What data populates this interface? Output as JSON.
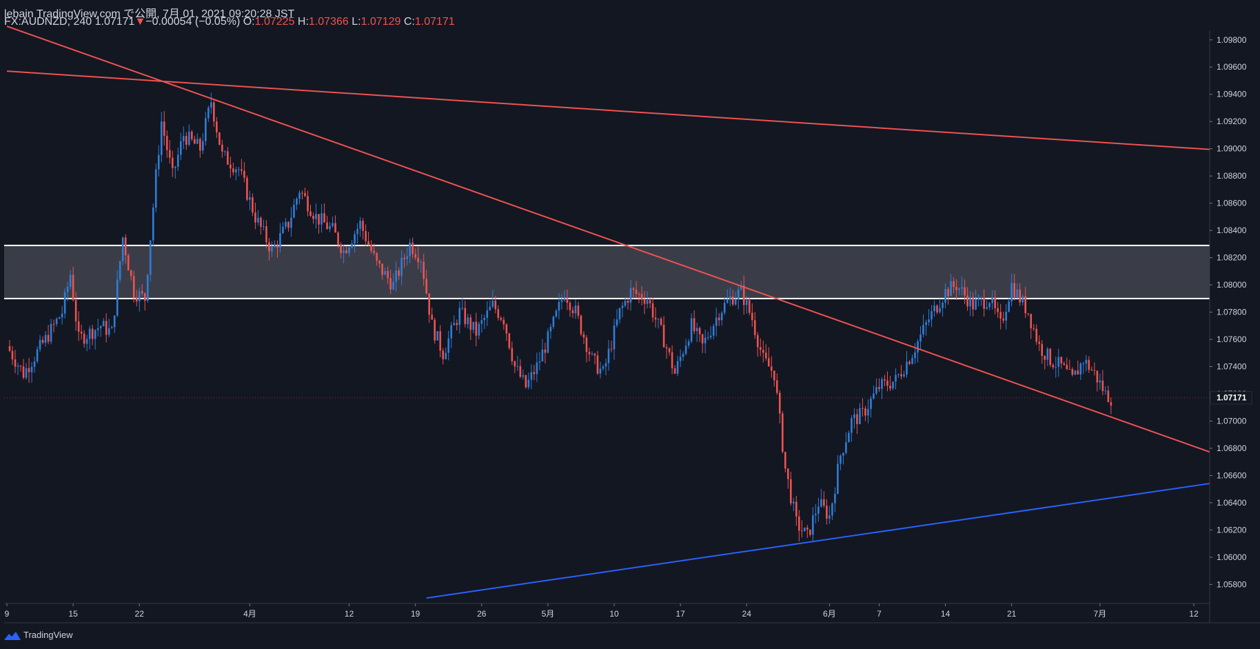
{
  "header": {
    "publisher": "lebain TradingView.com で公開, 7月 01, 2021 09:20:28 JST",
    "symbol": "FX:AUDNZD, 240",
    "last": "1.07171",
    "arrow": "▼",
    "change": "−0.00054 (−0.05%)",
    "o_label": "O:",
    "o": "1.07225",
    "h_label": "H:",
    "h": "1.07366",
    "l_label": "L:",
    "l": "1.07129",
    "c_label": "C:",
    "c": "1.07171"
  },
  "brand": {
    "name": "TradingView"
  },
  "colors": {
    "bg": "#131722",
    "up": "#2f7ed8",
    "down": "#ef5350",
    "trend_red": "#ef5350",
    "trend_blue": "#2962ff",
    "zone": "#3a3d48",
    "text": "#d1d4dc"
  },
  "chart_data": {
    "type": "candlestick",
    "title": "FX:AUDNZD, 240",
    "ylim": [
      1.0566,
      1.0989
    ],
    "y_ticks": [
      "1.09800",
      "1.09600",
      "1.09400",
      "1.09200",
      "1.09000",
      "1.08800",
      "1.08600",
      "1.08400",
      "1.08200",
      "1.08000",
      "1.07800",
      "1.07600",
      "1.07400",
      "1.07200",
      "1.07000",
      "1.06800",
      "1.06600",
      "1.06400",
      "1.06200",
      "1.06000",
      "1.05800"
    ],
    "x_ticks": [
      {
        "label": "9",
        "idx": 0
      },
      {
        "label": "15",
        "idx": 24
      },
      {
        "label": "22",
        "idx": 48
      },
      {
        "label": "4月",
        "idx": 88
      },
      {
        "label": "12",
        "idx": 124
      },
      {
        "label": "19",
        "idx": 148
      },
      {
        "label": "26",
        "idx": 172
      },
      {
        "label": "5月",
        "idx": 196
      },
      {
        "label": "10",
        "idx": 220
      },
      {
        "label": "17",
        "idx": 244
      },
      {
        "label": "24",
        "idx": 268
      },
      {
        "label": "6月",
        "idx": 298
      },
      {
        "label": "7",
        "idx": 316
      },
      {
        "label": "14",
        "idx": 340
      },
      {
        "label": "21",
        "idx": 364
      },
      {
        "label": "7月",
        "idx": 396
      },
      {
        "label": "12",
        "idx": 430
      }
    ],
    "last_price": "1.07171",
    "key_points": [
      {
        "idx": 0,
        "price": 1.0755
      },
      {
        "idx": 6,
        "price": 1.0735
      },
      {
        "idx": 14,
        "price": 1.076
      },
      {
        "idx": 20,
        "price": 1.078
      },
      {
        "idx": 23,
        "price": 1.0808
      },
      {
        "idx": 26,
        "price": 1.076
      },
      {
        "idx": 34,
        "price": 1.077
      },
      {
        "idx": 38,
        "price": 1.0765
      },
      {
        "idx": 42,
        "price": 1.0835
      },
      {
        "idx": 46,
        "price": 1.0795
      },
      {
        "idx": 50,
        "price": 1.079
      },
      {
        "idx": 54,
        "price": 1.088
      },
      {
        "idx": 56,
        "price": 1.092
      },
      {
        "idx": 60,
        "price": 1.088
      },
      {
        "idx": 64,
        "price": 1.091
      },
      {
        "idx": 70,
        "price": 1.09
      },
      {
        "idx": 74,
        "price": 1.0935
      },
      {
        "idx": 78,
        "price": 1.0895
      },
      {
        "idx": 84,
        "price": 1.0885
      },
      {
        "idx": 90,
        "price": 1.085
      },
      {
        "idx": 96,
        "price": 1.0825
      },
      {
        "idx": 102,
        "price": 1.0845
      },
      {
        "idx": 106,
        "price": 1.087
      },
      {
        "idx": 112,
        "price": 1.085
      },
      {
        "idx": 118,
        "price": 1.084
      },
      {
        "idx": 122,
        "price": 1.0825
      },
      {
        "idx": 128,
        "price": 1.0845
      },
      {
        "idx": 134,
        "price": 1.0815
      },
      {
        "idx": 140,
        "price": 1.08
      },
      {
        "idx": 146,
        "price": 1.083
      },
      {
        "idx": 150,
        "price": 1.082
      },
      {
        "idx": 154,
        "price": 1.077
      },
      {
        "idx": 158,
        "price": 1.075
      },
      {
        "idx": 164,
        "price": 1.078
      },
      {
        "idx": 170,
        "price": 1.0765
      },
      {
        "idx": 176,
        "price": 1.0785
      },
      {
        "idx": 180,
        "price": 1.0775
      },
      {
        "idx": 184,
        "price": 1.074
      },
      {
        "idx": 188,
        "price": 1.0725
      },
      {
        "idx": 192,
        "price": 1.074
      },
      {
        "idx": 196,
        "price": 1.076
      },
      {
        "idx": 202,
        "price": 1.0795
      },
      {
        "idx": 206,
        "price": 1.078
      },
      {
        "idx": 212,
        "price": 1.0745
      },
      {
        "idx": 216,
        "price": 1.0735
      },
      {
        "idx": 222,
        "price": 1.078
      },
      {
        "idx": 226,
        "price": 1.0795
      },
      {
        "idx": 232,
        "price": 1.079
      },
      {
        "idx": 238,
        "price": 1.076
      },
      {
        "idx": 242,
        "price": 1.0735
      },
      {
        "idx": 248,
        "price": 1.077
      },
      {
        "idx": 252,
        "price": 1.0755
      },
      {
        "idx": 258,
        "price": 1.078
      },
      {
        "idx": 262,
        "price": 1.079
      },
      {
        "idx": 266,
        "price": 1.0795
      },
      {
        "idx": 270,
        "price": 1.0775
      },
      {
        "idx": 274,
        "price": 1.0745
      },
      {
        "idx": 278,
        "price": 1.0735
      },
      {
        "idx": 282,
        "price": 1.0665
      },
      {
        "idx": 286,
        "price": 1.0625
      },
      {
        "idx": 290,
        "price": 1.0615
      },
      {
        "idx": 294,
        "price": 1.064
      },
      {
        "idx": 298,
        "price": 1.063
      },
      {
        "idx": 302,
        "price": 1.0675
      },
      {
        "idx": 306,
        "price": 1.07
      },
      {
        "idx": 310,
        "price": 1.0705
      },
      {
        "idx": 316,
        "price": 1.0725
      },
      {
        "idx": 322,
        "price": 1.073
      },
      {
        "idx": 328,
        "price": 1.075
      },
      {
        "idx": 334,
        "price": 1.0775
      },
      {
        "idx": 340,
        "price": 1.0795
      },
      {
        "idx": 344,
        "price": 1.08
      },
      {
        "idx": 350,
        "price": 1.0785
      },
      {
        "idx": 356,
        "price": 1.079
      },
      {
        "idx": 360,
        "price": 1.077
      },
      {
        "idx": 364,
        "price": 1.08
      },
      {
        "idx": 370,
        "price": 1.078
      },
      {
        "idx": 374,
        "price": 1.0755
      },
      {
        "idx": 378,
        "price": 1.0745
      },
      {
        "idx": 382,
        "price": 1.074
      },
      {
        "idx": 386,
        "price": 1.073
      },
      {
        "idx": 390,
        "price": 1.0745
      },
      {
        "idx": 394,
        "price": 1.0735
      },
      {
        "idx": 398,
        "price": 1.072
      },
      {
        "idx": 400,
        "price": 1.0717
      }
    ],
    "total_bars": 400,
    "axis_bars": 432,
    "zone": {
      "top": 1.0829,
      "bottom": 1.079
    },
    "trendlines": [
      {
        "name": "upper-resistance",
        "color": "#ef5350",
        "from": {
          "idx": 0,
          "price": 1.0957
        },
        "to": {
          "idx": 432,
          "price": 1.09
        }
      },
      {
        "name": "descending-trendline",
        "color": "#ef5350",
        "from": {
          "idx": 0,
          "price": 1.099
        },
        "to": {
          "idx": 432,
          "price": 1.068
        }
      },
      {
        "name": "ascending-support",
        "color": "#2962ff",
        "from": {
          "idx": 152,
          "price": 1.057
        },
        "to": {
          "idx": 432,
          "price": 1.0653
        }
      }
    ]
  }
}
